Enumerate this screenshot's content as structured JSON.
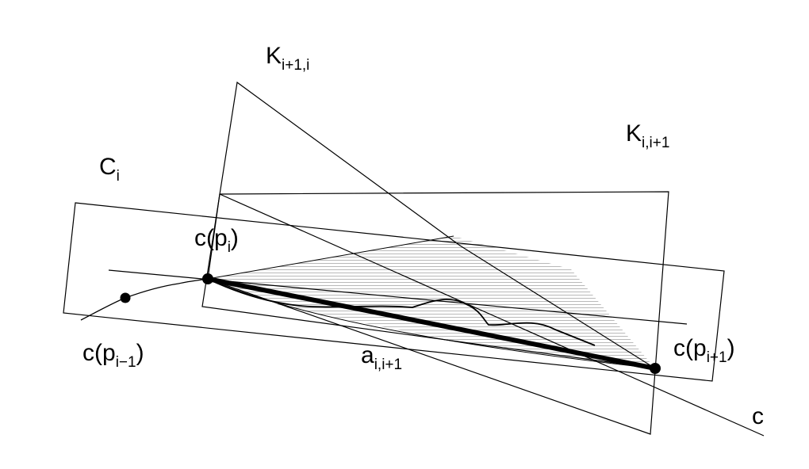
{
  "labels": {
    "k_upper": {
      "base": "K",
      "sub": "i+1,i"
    },
    "k_lower": {
      "base": "K",
      "sub": "i,i+1"
    },
    "c_i": {
      "base": "C",
      "sub": "i"
    },
    "c_p_i": {
      "pre": "c(p",
      "sub": "i",
      "post": ")"
    },
    "c_p_prev": {
      "pre": "c(p",
      "sub": "i−1",
      "post": ")"
    },
    "c_p_next": {
      "pre": "c(p",
      "sub": "i+1",
      "post": ")"
    },
    "a": {
      "base": "a",
      "sub": "i,i+1"
    },
    "curve": "c"
  }
}
